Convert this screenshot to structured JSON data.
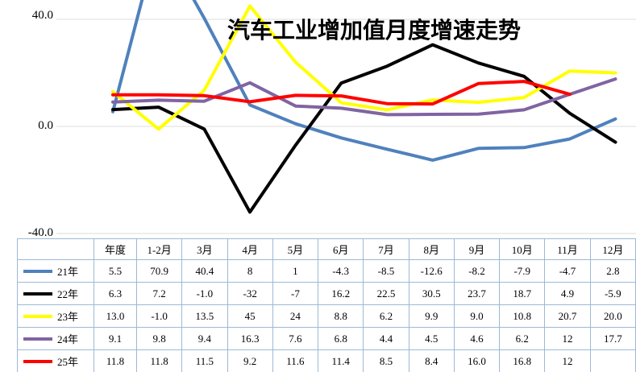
{
  "title": "汽车工业增加值月度增速走势",
  "chart_data": {
    "type": "line",
    "categories": [
      "年度",
      "1-2月",
      "3月",
      "4月",
      "5月",
      "6月",
      "7月",
      "8月",
      "9月",
      "10月",
      "11月",
      "12月"
    ],
    "series": [
      {
        "name": "21年",
        "color": "#4F81BD",
        "values": [
          5.5,
          70.9,
          40.4,
          8,
          1,
          -4.3,
          -8.5,
          -12.6,
          -8.2,
          -7.9,
          -4.7,
          2.8
        ],
        "cells": [
          "5.5",
          "70.9",
          "40.4",
          "8",
          "1",
          "-4.3",
          "-8.5",
          "-12.6",
          "-8.2",
          "-7.9",
          "-4.7",
          "2.8"
        ]
      },
      {
        "name": "22年",
        "color": "#000000",
        "values": [
          6.3,
          7.2,
          -1.0,
          -32,
          -7,
          16.2,
          22.5,
          30.5,
          23.7,
          18.7,
          4.9,
          -5.9
        ],
        "cells": [
          "6.3",
          "7.2",
          "-1.0",
          "-32",
          "-7",
          "16.2",
          "22.5",
          "30.5",
          "23.7",
          "18.7",
          "4.9",
          "-5.9"
        ]
      },
      {
        "name": "23年",
        "color": "#FFFF00",
        "values": [
          13.0,
          -1.0,
          13.5,
          45,
          24,
          8.8,
          6.2,
          9.9,
          9.0,
          10.8,
          20.7,
          20.0
        ],
        "cells": [
          "13.0",
          "-1.0",
          "13.5",
          "45",
          "24",
          "8.8",
          "6.2",
          "9.9",
          "9.0",
          "10.8",
          "20.7",
          "20.0"
        ]
      },
      {
        "name": "24年",
        "color": "#8064A2",
        "values": [
          9.1,
          9.8,
          9.4,
          16.3,
          7.6,
          6.8,
          4.4,
          4.5,
          4.6,
          6.2,
          12,
          17.7
        ],
        "cells": [
          "9.1",
          "9.8",
          "9.4",
          "16.3",
          "7.6",
          "6.8",
          "4.4",
          "4.5",
          "4.6",
          "6.2",
          "12",
          "17.7"
        ]
      },
      {
        "name": "25年",
        "color": "#FF0000",
        "values": [
          11.8,
          11.8,
          11.5,
          9.2,
          11.6,
          11.4,
          8.5,
          8.4,
          16.0,
          16.8,
          12,
          null
        ],
        "cells": [
          "11.8",
          "11.8",
          "11.5",
          "9.2",
          "11.6",
          "11.4",
          "8.5",
          "8.4",
          "16.0",
          "16.8",
          "12",
          ""
        ]
      }
    ],
    "ylim": [
      -40,
      40
    ],
    "yticks": [
      "40.0",
      "0.0",
      "-40.0"
    ],
    "grid": true,
    "legend_position": "table-left",
    "gridline_color": "#DCDCDC",
    "table_border_color": "#9DB9D6"
  }
}
